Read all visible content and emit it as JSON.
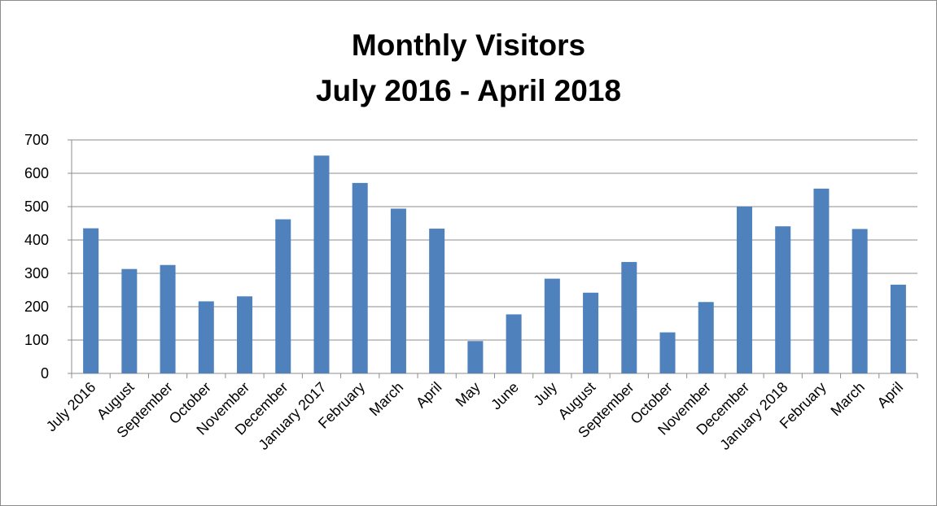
{
  "chart_data": {
    "type": "bar",
    "title_line1": "Monthly Visitors",
    "title_line2": "July 2016 - April 2018",
    "xlabel": "",
    "ylabel": "",
    "ylim": [
      0,
      700
    ],
    "yticks": [
      0,
      100,
      200,
      300,
      400,
      500,
      600,
      700
    ],
    "grid": true,
    "legend": "none",
    "bar_color": "#4f81bd",
    "categories": [
      "July 2016",
      "August",
      "September",
      "October",
      "November",
      "December",
      "January 2017",
      "February",
      "March",
      "April",
      "May",
      "June",
      "July",
      "August",
      "September",
      "October",
      "November",
      "December",
      "January 2018",
      "February",
      "March",
      "April"
    ],
    "values": [
      435,
      313,
      325,
      216,
      231,
      462,
      653,
      571,
      494,
      434,
      97,
      177,
      284,
      242,
      334,
      123,
      214,
      500,
      441,
      554,
      433,
      266
    ]
  }
}
